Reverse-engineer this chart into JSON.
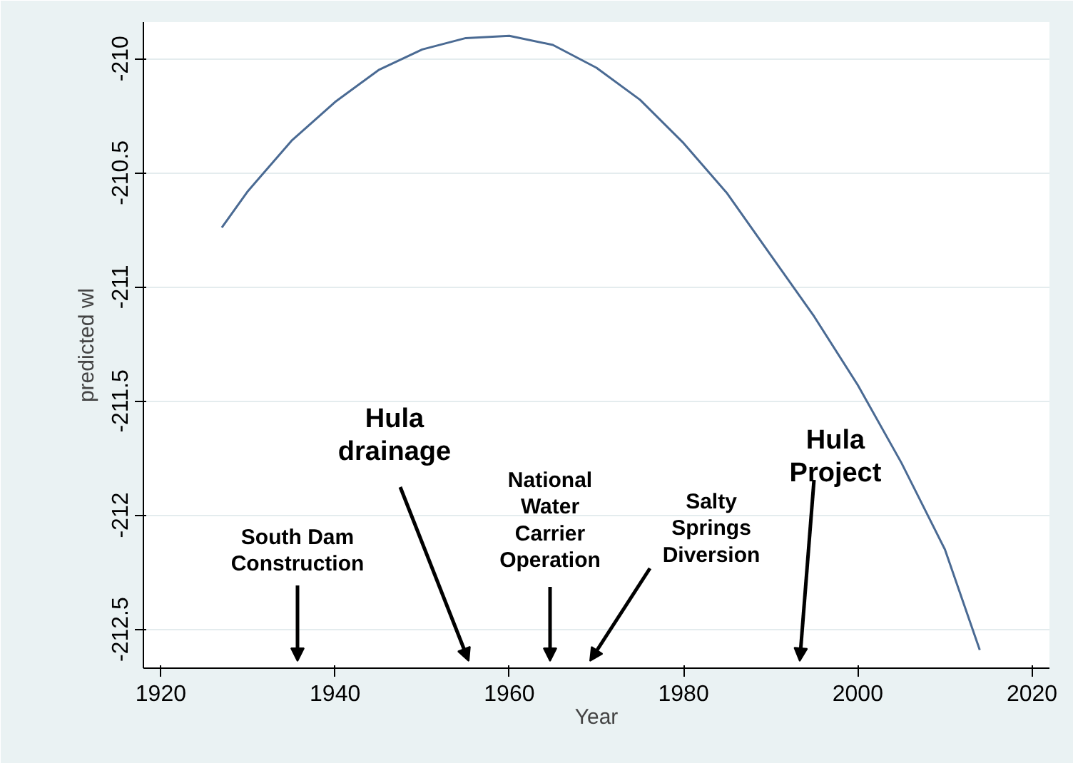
{
  "chart_data": {
    "type": "line",
    "xlabel": "Year",
    "ylabel": "predicted wl",
    "x": [
      1927,
      1930,
      1935,
      1940,
      1945,
      1950,
      1955,
      1960,
      1965,
      1970,
      1975,
      1980,
      1985,
      1990,
      1995,
      2000,
      2005,
      2010,
      2014
    ],
    "series": [
      {
        "color": "#4a6a93",
        "values": [
          -210.74,
          -210.58,
          -210.36,
          -210.19,
          -210.05,
          -209.96,
          -209.91,
          -209.9,
          -209.94,
          -210.04,
          -210.18,
          -210.37,
          -210.59,
          -210.86,
          -211.13,
          -211.43,
          -211.77,
          -212.15,
          -212.59
        ]
      }
    ],
    "xlim": [
      1918,
      2022
    ],
    "ylim": [
      -212.67,
      -209.84
    ],
    "xticks": [
      1920,
      1940,
      1960,
      1980,
      2000,
      2020
    ],
    "yticks": [
      -212.5,
      -212,
      -211.5,
      -211,
      -210.5,
      -210
    ],
    "grid": "y",
    "marker": "none",
    "line_style": "solid",
    "annotations": [
      "South Dam\nConstruction",
      "Hula\ndrainage",
      "National\nWater\nCarrier\nOperation",
      "Salty\nSprings\nDiversion",
      "Hula\nProject"
    ]
  }
}
